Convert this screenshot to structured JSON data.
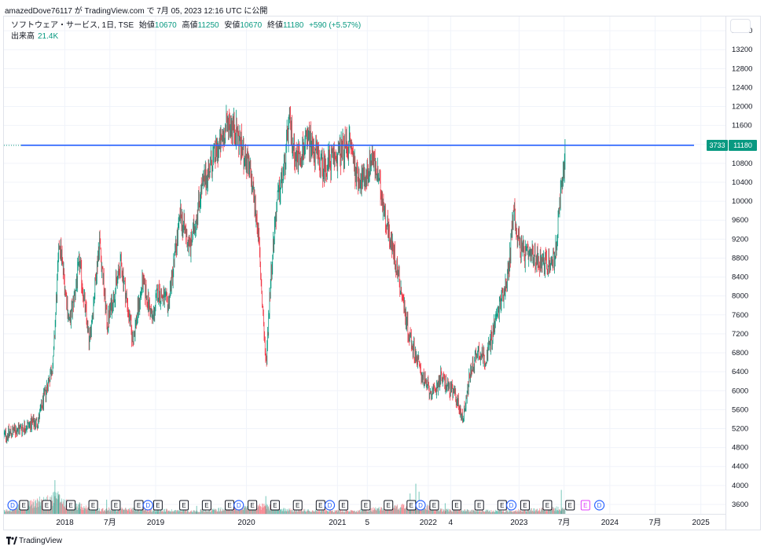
{
  "header": {
    "publish_text": "amazedDove76117 が TradingView.com で 7月 05, 2023 12:16 UTC に公開"
  },
  "legend": {
    "symbol": "ソフトウェア・サービス, 1日, TSE",
    "open_label": "始値",
    "open_value": "10670",
    "high_label": "高値",
    "high_value": "11250",
    "low_label": "安値",
    "low_value": "10670",
    "close_label": "終値",
    "close_value": "11180",
    "change": "+590 (+5.57%)",
    "volume_label": "出来高",
    "volume_value": "21.4K"
  },
  "footer": {
    "brand": "TradingView"
  },
  "colors": {
    "up": "#089981",
    "down": "#f23645",
    "line": "#2962ff",
    "event_dividend": "#2962ff",
    "event_earnings": "#131722",
    "event_future": "#e040fb"
  },
  "chart_data": {
    "type": "candlestick",
    "title": "ソフトウェア・サービス, 1日, TSE",
    "ylim": [
      3400,
      13900
    ],
    "y_ticks": [
      "3600",
      "4000",
      "4400",
      "4800",
      "5200",
      "5600",
      "6000",
      "6400",
      "6800",
      "7200",
      "7600",
      "8000",
      "8400",
      "8800",
      "9200",
      "9600",
      "10000",
      "10400",
      "10800",
      "11200",
      "11600",
      "12000",
      "12400",
      "12800",
      "13200",
      "13600"
    ],
    "x_ticks": [
      "2018",
      "7月",
      "2019",
      "2020",
      "2021",
      "5",
      "2022",
      "4",
      "2023",
      "7月",
      "2024",
      "7月",
      "2025"
    ],
    "x_tick_dates": [
      "2018-01-01",
      "2018-07-01",
      "2019-01-01",
      "2020-01-01",
      "2021-01-01",
      "2021-05-01",
      "2022-01-01",
      "2022-04-01",
      "2023-01-01",
      "2023-07-01",
      "2024-01-01",
      "2024-07-01",
      "2025-01-01"
    ],
    "x_range": [
      "2017-05-01",
      "2025-04-10"
    ],
    "price_keypoints": [
      [
        "2017-05-01",
        5050
      ],
      [
        "2017-07-01",
        5200
      ],
      [
        "2017-09-15",
        5350
      ],
      [
        "2017-11-15",
        6600
      ],
      [
        "2017-12-10",
        9200
      ],
      [
        "2018-01-20",
        7400
      ],
      [
        "2018-03-01",
        8700
      ],
      [
        "2018-04-10",
        7000
      ],
      [
        "2018-05-20",
        9200
      ],
      [
        "2018-06-20",
        7400
      ],
      [
        "2018-08-15",
        8700
      ],
      [
        "2018-10-01",
        7050
      ],
      [
        "2018-11-10",
        8300
      ],
      [
        "2018-12-20",
        7500
      ],
      [
        "2019-01-10",
        8100
      ],
      [
        "2019-02-20",
        7800
      ],
      [
        "2019-04-10",
        9700
      ],
      [
        "2019-05-20",
        9000
      ],
      [
        "2019-07-01",
        10200
      ],
      [
        "2019-08-20",
        10900
      ],
      [
        "2019-09-20",
        11200
      ],
      [
        "2019-10-20",
        11700
      ],
      [
        "2019-11-20",
        11500
      ],
      [
        "2019-12-20",
        11000
      ],
      [
        "2020-01-20",
        10500
      ],
      [
        "2020-02-15",
        9500
      ],
      [
        "2020-03-10",
        7400
      ],
      [
        "2020-03-19",
        6500
      ],
      [
        "2020-04-10",
        8600
      ],
      [
        "2020-05-01",
        9900
      ],
      [
        "2020-06-01",
        10700
      ],
      [
        "2020-06-20",
        11650
      ],
      [
        "2020-07-20",
        10900
      ],
      [
        "2020-09-10",
        11300
      ],
      [
        "2020-11-01",
        10700
      ],
      [
        "2021-01-10",
        11000
      ],
      [
        "2021-02-20",
        11250
      ],
      [
        "2021-03-20",
        10550
      ],
      [
        "2021-04-20",
        10400
      ],
      [
        "2021-05-20",
        11000
      ],
      [
        "2021-06-20",
        10300
      ],
      [
        "2021-08-01",
        9200
      ],
      [
        "2021-09-01",
        8500
      ],
      [
        "2021-10-15",
        7200
      ],
      [
        "2021-12-15",
        6200
      ],
      [
        "2022-01-20",
        5900
      ],
      [
        "2022-02-20",
        6300
      ],
      [
        "2022-03-20",
        6100
      ],
      [
        "2022-04-20",
        5900
      ],
      [
        "2022-05-20",
        5400
      ],
      [
        "2022-06-20",
        6400
      ],
      [
        "2022-07-20",
        6850
      ],
      [
        "2022-08-20",
        6650
      ],
      [
        "2022-09-20",
        7300
      ],
      [
        "2022-10-20",
        7900
      ],
      [
        "2022-11-20",
        8500
      ],
      [
        "2022-12-10",
        9900
      ],
      [
        "2022-12-25",
        9300
      ],
      [
        "2023-01-15",
        8900
      ],
      [
        "2023-02-15",
        8800
      ],
      [
        "2023-03-15",
        8800
      ],
      [
        "2023-04-15",
        8700
      ],
      [
        "2023-05-15",
        8700
      ],
      [
        "2023-05-31",
        9000
      ],
      [
        "2023-06-15",
        10000
      ],
      [
        "2023-06-30",
        10700
      ],
      [
        "2023-07-05",
        11180
      ]
    ],
    "volume_keypoints": [
      [
        "2017-05-01",
        3
      ],
      [
        "2017-12-01",
        18
      ],
      [
        "2018-01-15",
        10
      ],
      [
        "2018-06-01",
        5
      ],
      [
        "2018-10-01",
        5
      ],
      [
        "2019-06-01",
        3
      ],
      [
        "2020-03-15",
        8
      ],
      [
        "2020-07-01",
        4
      ],
      [
        "2021-03-01",
        3
      ],
      [
        "2021-11-15",
        9
      ],
      [
        "2022-03-01",
        4
      ],
      [
        "2022-11-01",
        3
      ],
      [
        "2023-06-20",
        6
      ],
      [
        "2023-07-05",
        4
      ]
    ],
    "volume_spikes": [
      [
        "2017-11-22",
        38
      ],
      [
        "2017-12-07",
        22
      ],
      [
        "2018-03-01",
        13
      ],
      [
        "2018-06-18",
        16
      ],
      [
        "2019-01-10",
        10
      ],
      [
        "2019-06-15",
        9
      ],
      [
        "2020-03-19",
        20
      ],
      [
        "2021-10-20",
        23
      ],
      [
        "2021-11-12",
        34
      ],
      [
        "2021-11-25",
        25
      ],
      [
        "2022-03-10",
        12
      ],
      [
        "2023-06-20",
        27
      ]
    ],
    "last_price": 11180,
    "last_price_label": "11180",
    "countdown_label": "3733",
    "horizontal_line": 11180,
    "volume_ylim": [
      0,
      62
    ],
    "events": [
      [
        "2017-06-05",
        "D"
      ],
      [
        "2017-07-20",
        "E"
      ],
      [
        "2017-10-20",
        "E"
      ],
      [
        "2018-01-25",
        "E"
      ],
      [
        "2018-04-25",
        "E"
      ],
      [
        "2018-07-25",
        "E"
      ],
      [
        "2018-10-25",
        "E"
      ],
      [
        "2018-12-01",
        "D"
      ],
      [
        "2019-01-10",
        "E"
      ],
      [
        "2019-04-25",
        "E"
      ],
      [
        "2019-07-25",
        "E"
      ],
      [
        "2019-10-25",
        "E"
      ],
      [
        "2019-12-01",
        "D"
      ],
      [
        "2020-01-25",
        "E"
      ],
      [
        "2020-04-25",
        "E"
      ],
      [
        "2020-07-25",
        "E"
      ],
      [
        "2020-10-25",
        "E"
      ],
      [
        "2020-12-01",
        "D"
      ],
      [
        "2021-01-25",
        "E"
      ],
      [
        "2021-04-25",
        "E"
      ],
      [
        "2021-07-25",
        "E"
      ],
      [
        "2021-10-25",
        "E"
      ],
      [
        "2021-12-01",
        "D"
      ],
      [
        "2022-01-25",
        "E"
      ],
      [
        "2022-04-25",
        "E"
      ],
      [
        "2022-07-25",
        "E"
      ],
      [
        "2022-10-25",
        "E"
      ],
      [
        "2022-12-01",
        "D"
      ],
      [
        "2023-01-25",
        "E"
      ],
      [
        "2023-04-25",
        "E"
      ],
      [
        "2023-07-25",
        "E"
      ]
    ],
    "future_events": [
      [
        "2023-09-25",
        "E"
      ],
      [
        "2023-11-20",
        "D"
      ]
    ]
  }
}
